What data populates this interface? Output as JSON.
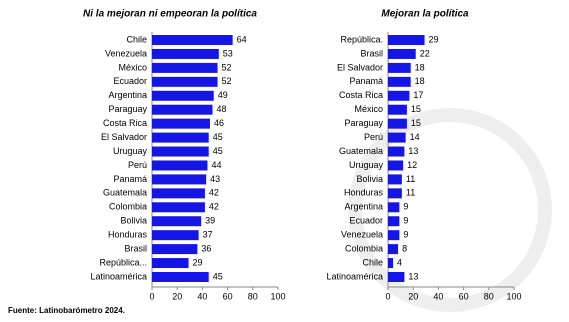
{
  "chart_data": [
    {
      "type": "bar",
      "orientation": "horizontal",
      "title": "Ni la mejoran ni empeoran la política",
      "categories": [
        "Chile",
        "Venezuela",
        "México",
        "Ecuador",
        "Argentina",
        "Paraguay",
        "Costa Rica",
        "El Salvador",
        "Uruguay",
        "Perú",
        "Panamá",
        "Guatemala",
        "Colombia",
        "Bolivia",
        "Honduras",
        "Brasil",
        "República...",
        "Latinoamérica"
      ],
      "values": [
        64,
        53,
        52,
        52,
        49,
        48,
        46,
        45,
        45,
        44,
        43,
        42,
        42,
        39,
        37,
        36,
        29,
        45
      ],
      "color": "#1515e6",
      "xlim": [
        0,
        100
      ],
      "xticks": [
        0,
        20,
        40,
        60,
        80,
        100
      ]
    },
    {
      "type": "bar",
      "orientation": "horizontal",
      "title": "Mejoran la política",
      "categories": [
        "República.",
        "Brasil",
        "El Salvador",
        "Panamá",
        "Costa Rica",
        "México",
        "Paraguay",
        "Perú",
        "Guatemala",
        "Uruguay",
        "Bolivia",
        "Honduras",
        "Argentina",
        "Ecuador",
        "Venezuela",
        "Colombia",
        "Chile",
        "Latinoamérica"
      ],
      "values": [
        29,
        22,
        18,
        18,
        17,
        15,
        15,
        14,
        13,
        12,
        11,
        11,
        9,
        9,
        9,
        8,
        4,
        13
      ],
      "color": "#1515e6",
      "xlim": [
        0,
        100
      ],
      "xticks": [
        0,
        20,
        40,
        60,
        80,
        100
      ]
    }
  ],
  "source": "Fuente: Latinobarómetro 2024."
}
